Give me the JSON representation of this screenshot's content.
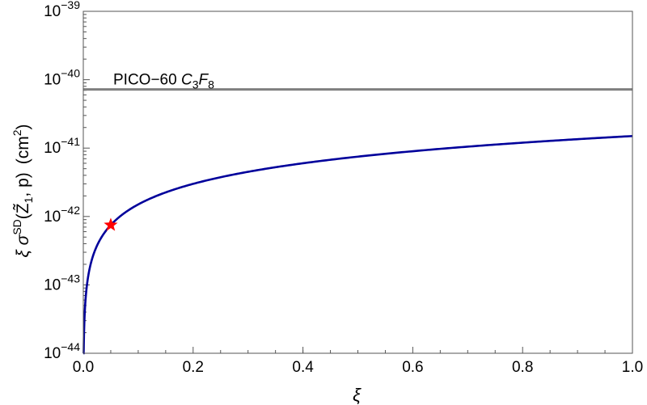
{
  "chart_data": {
    "type": "line",
    "title": "",
    "xlabel": "ξ",
    "ylabel": {
      "prefix": "ξ σ",
      "sup": "SD",
      "args": "(Z̃",
      "sub": "1",
      "args_end": ", p)",
      "units_open": "(cm",
      "units_sup": "2",
      "units_close": ")"
    },
    "x_scale": "linear",
    "y_scale": "log",
    "xlim": [
      0,
      1
    ],
    "ylim": [
      1e-44,
      1e-39
    ],
    "x_ticks": [
      {
        "value": 0.0,
        "label": "0.0"
      },
      {
        "value": 0.2,
        "label": "0.2"
      },
      {
        "value": 0.4,
        "label": "0.4"
      },
      {
        "value": 0.6,
        "label": "0.6"
      },
      {
        "value": 0.8,
        "label": "0.8"
      },
      {
        "value": 1.0,
        "label": "1.0"
      }
    ],
    "y_ticks": [
      {
        "value": 1e-44,
        "base": "10",
        "exp": "−44"
      },
      {
        "value": 1e-43,
        "base": "10",
        "exp": "−43"
      },
      {
        "value": 1e-42,
        "base": "10",
        "exp": "−42"
      },
      {
        "value": 1e-41,
        "base": "10",
        "exp": "−41"
      },
      {
        "value": 1e-40,
        "base": "10",
        "exp": "−40"
      },
      {
        "value": 1e-39,
        "base": "10",
        "exp": "−39"
      }
    ],
    "grid": false,
    "series": [
      {
        "color": "#00009b",
        "formula_coefficient": 1.5e-41,
        "formula": "y = 1.5e-41 * x",
        "x_range": [
          0,
          1
        ]
      }
    ],
    "reference_lines": [
      {
        "y": 7.2e-41,
        "color": "#7f7f7f",
        "label_plain": "PICO−60 ",
        "label_c": "C",
        "label_c_sub": "3",
        "label_f": "F",
        "label_f_sub": "8"
      }
    ],
    "markers": [
      {
        "x": 0.05,
        "y": 7.5e-43,
        "shape": "star",
        "color": "#ff0000"
      }
    ]
  }
}
